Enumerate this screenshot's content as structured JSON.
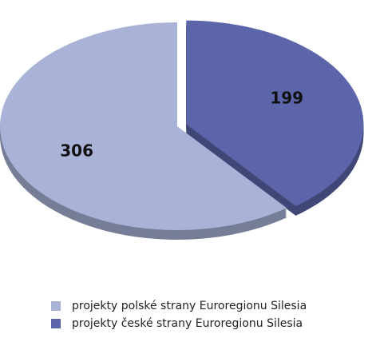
{
  "chart_data": {
    "type": "pie",
    "categories": [
      "projekty polské strany Euroregionu Silesia",
      "projekty české strany Euroregionu Silesia"
    ],
    "values": [
      306,
      199
    ],
    "colors": [
      "#a9b3d8",
      "#5c65a9"
    ]
  }
}
